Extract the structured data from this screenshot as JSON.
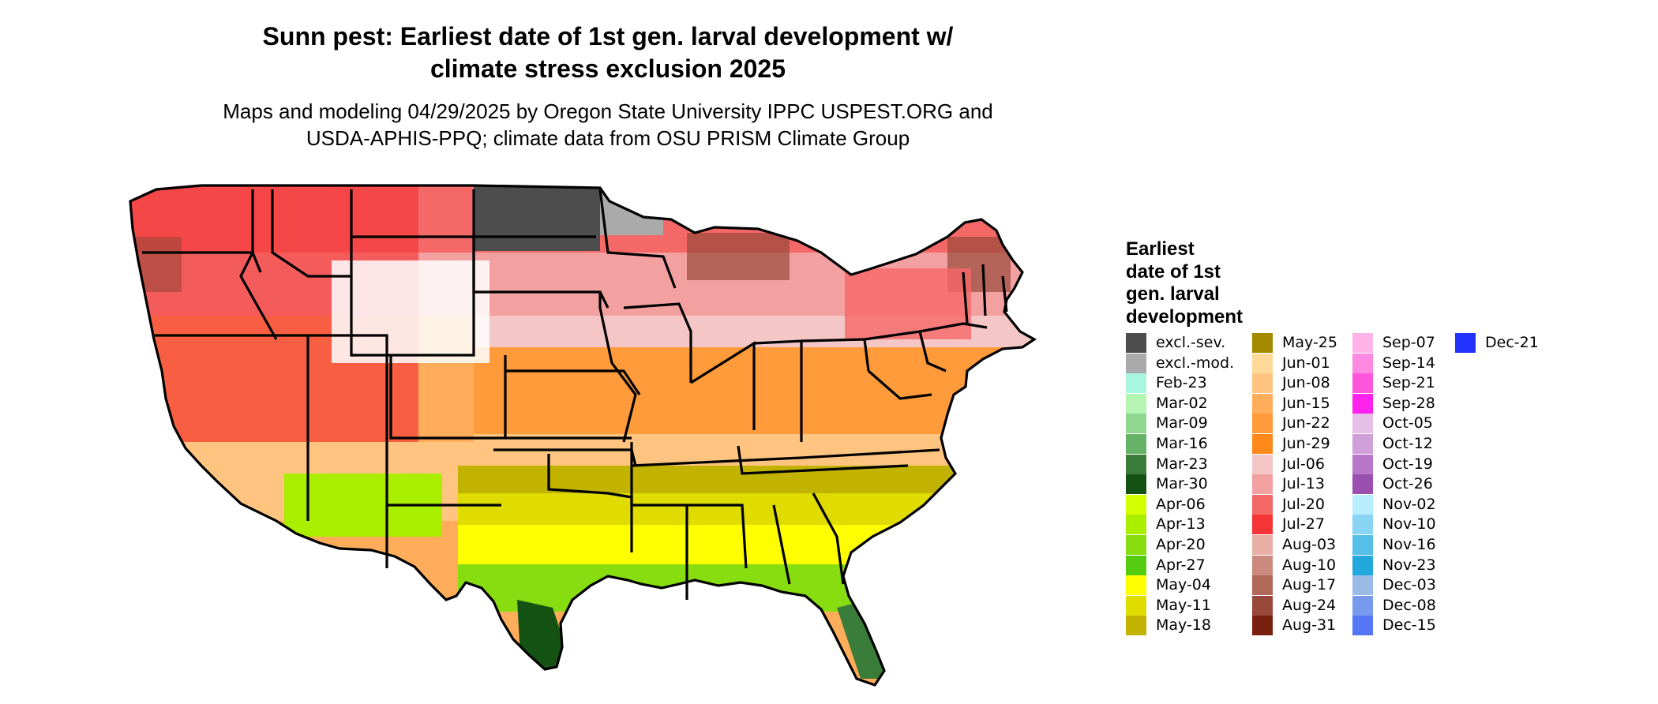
{
  "header": {
    "title_line1": "Sunn pest: Earliest date of 1st gen. larval development w/",
    "title_line2": "climate stress exclusion 2025",
    "subtitle_line1": "Maps and modeling 04/29/2025 by Oregon State University IPPC USPEST.ORG and",
    "subtitle_line2": "USDA-APHIS-PPQ; climate data from OSU PRISM Climate Group"
  },
  "legend": {
    "title_lines": [
      "Earliest",
      "date of 1st",
      "gen. larval",
      "development"
    ],
    "items": [
      {
        "label": "excl.-sev.",
        "color": "#4d4d4d"
      },
      {
        "label": "excl.-mod.",
        "color": "#aaaaaa"
      },
      {
        "label": "Feb-23",
        "color": "#a8f5e0"
      },
      {
        "label": "Mar-02",
        "color": "#b4f5b4"
      },
      {
        "label": "Mar-09",
        "color": "#8fd68f"
      },
      {
        "label": "Mar-16",
        "color": "#66b266"
      },
      {
        "label": "Mar-23",
        "color": "#3a7d3a"
      },
      {
        "label": "Mar-30",
        "color": "#145214"
      },
      {
        "label": "Apr-06",
        "color": "#d4ff00"
      },
      {
        "label": "Apr-13",
        "color": "#aaee00"
      },
      {
        "label": "Apr-20",
        "color": "#88dd11"
      },
      {
        "label": "Apr-27",
        "color": "#55cc11"
      },
      {
        "label": "May-04",
        "color": "#ffff00"
      },
      {
        "label": "May-11",
        "color": "#e0dc00"
      },
      {
        "label": "May-18",
        "color": "#c2b300"
      },
      {
        "label": "May-25",
        "color": "#a38a00"
      },
      {
        "label": "Jun-01",
        "color": "#ffd99a"
      },
      {
        "label": "Jun-08",
        "color": "#ffc480"
      },
      {
        "label": "Jun-15",
        "color": "#ffad5a"
      },
      {
        "label": "Jun-22",
        "color": "#ff9b3a"
      },
      {
        "label": "Jun-29",
        "color": "#ff8a1a"
      },
      {
        "label": "Jul-06",
        "color": "#f5c6c6"
      },
      {
        "label": "Jul-13",
        "color": "#f3a0a0"
      },
      {
        "label": "Jul-20",
        "color": "#f56868"
      },
      {
        "label": "Jul-27",
        "color": "#f53535"
      },
      {
        "label": "Aug-03",
        "color": "#e8b0a4"
      },
      {
        "label": "Aug-10",
        "color": "#cc8a7e"
      },
      {
        "label": "Aug-17",
        "color": "#b06858"
      },
      {
        "label": "Aug-24",
        "color": "#98483a"
      },
      {
        "label": "Aug-31",
        "color": "#7a2010"
      },
      {
        "label": "Sep-07",
        "color": "#ffb3e6"
      },
      {
        "label": "Sep-14",
        "color": "#ff88e0"
      },
      {
        "label": "Sep-21",
        "color": "#ff55dd"
      },
      {
        "label": "Sep-28",
        "color": "#ff22ee"
      },
      {
        "label": "Oct-05",
        "color": "#e6bfe6"
      },
      {
        "label": "Oct-12",
        "color": "#d0a0d8"
      },
      {
        "label": "Oct-19",
        "color": "#b877c8"
      },
      {
        "label": "Oct-26",
        "color": "#9a50b0"
      },
      {
        "label": "Nov-02",
        "color": "#b8ecff"
      },
      {
        "label": "Nov-10",
        "color": "#88d4f2"
      },
      {
        "label": "Nov-16",
        "color": "#55bfe8"
      },
      {
        "label": "Nov-23",
        "color": "#22a8dd"
      },
      {
        "label": "Dec-03",
        "color": "#99bbe6"
      },
      {
        "label": "Dec-08",
        "color": "#7799ee"
      },
      {
        "label": "Dec-15",
        "color": "#5577f5"
      },
      {
        "label": "Dec-21",
        "color": "#2233ff"
      }
    ]
  }
}
